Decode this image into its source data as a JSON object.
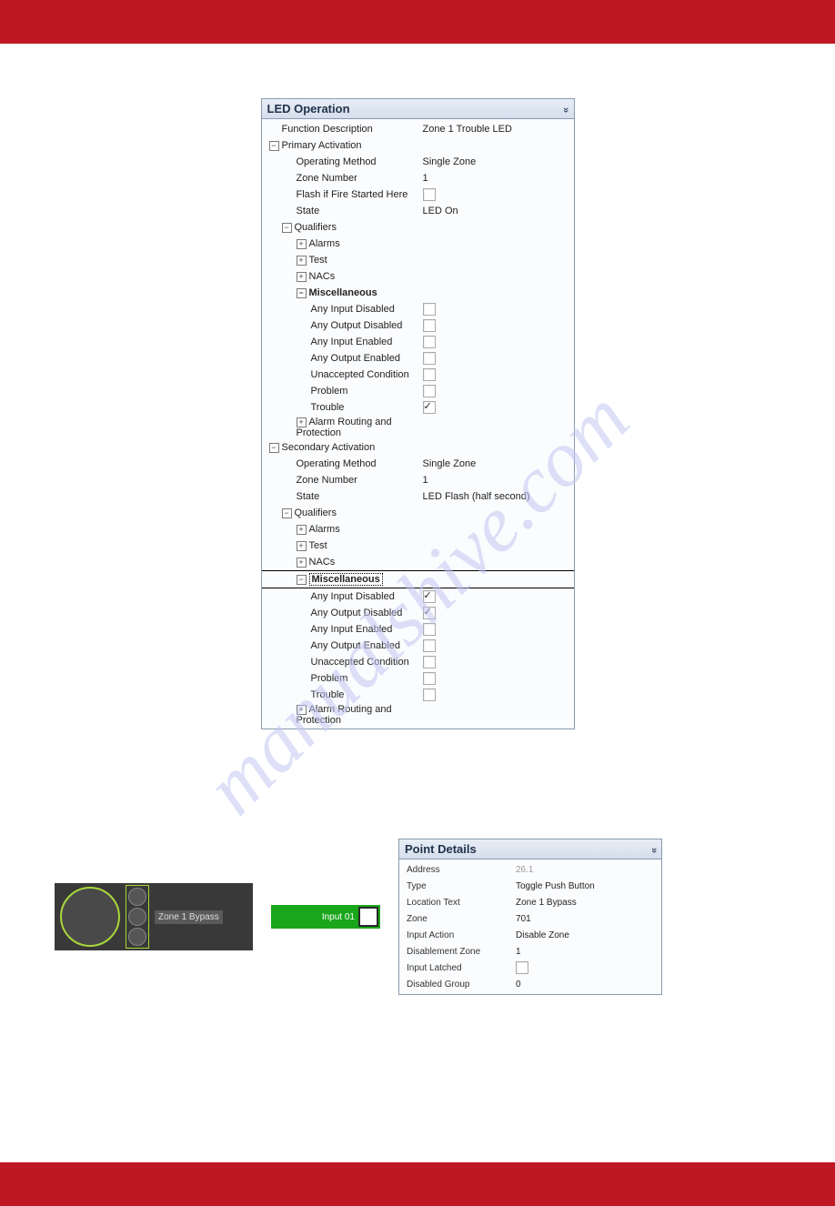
{
  "watermark": "manualshive.com",
  "led_panel": {
    "title": "LED Operation",
    "rows": {
      "func_desc_label": "Function Description",
      "func_desc_value": "Zone 1 Trouble LED",
      "primary_activation": "Primary Activation",
      "op_method_label": "Operating Method",
      "op_method_value": "Single Zone",
      "zone_num_label": "Zone Number",
      "zone_num_value": "1",
      "flash_label": "Flash if Fire Started Here",
      "state_label": "State",
      "state_value1": "LED On",
      "qualifiers": "Qualifiers",
      "alarms": "Alarms",
      "test": "Test",
      "nacs": "NACs",
      "misc": "Miscellaneous",
      "any_in_dis": "Any Input Disabled",
      "any_out_dis": "Any Output Disabled",
      "any_in_en": "Any Input Enabled",
      "any_out_en": "Any Output Enabled",
      "unacc": "Unaccepted Condition",
      "problem": "Problem",
      "trouble": "Trouble",
      "alarm_route": "Alarm Routing and Protection",
      "secondary_activation": "Secondary Activation",
      "state_value2": "LED Flash (half second)"
    },
    "checks": {
      "p_flash": false,
      "p_in_dis": false,
      "p_out_dis": false,
      "p_in_en": false,
      "p_out_en": false,
      "p_unacc": false,
      "p_problem": false,
      "p_trouble": true,
      "s_in_dis": true,
      "s_out_dis": true,
      "s_in_en": false,
      "s_out_en": false,
      "s_unacc": false,
      "s_problem": false,
      "s_trouble": false
    }
  },
  "dark_panel": {
    "tag": "Zone 1 Bypass"
  },
  "green_block": {
    "label": "Input 01"
  },
  "details_panel": {
    "title": "Point Details",
    "rows": [
      {
        "k": "Address",
        "v": "26.1",
        "grey": true
      },
      {
        "k": "Type",
        "v": "Toggle Push Button"
      },
      {
        "k": "Location Text",
        "v": "Zone 1 Bypass"
      },
      {
        "k": "Zone",
        "v": "701"
      },
      {
        "k": "Input Action",
        "v": "Disable Zone"
      },
      {
        "k": "Disablement Zone",
        "v": "1"
      },
      {
        "k": "Input Latched",
        "v": "[cb]"
      },
      {
        "k": "Disabled Group",
        "v": "0"
      }
    ]
  },
  "glyphs": {
    "plus": "+",
    "minus": "−",
    "chev": "»"
  }
}
